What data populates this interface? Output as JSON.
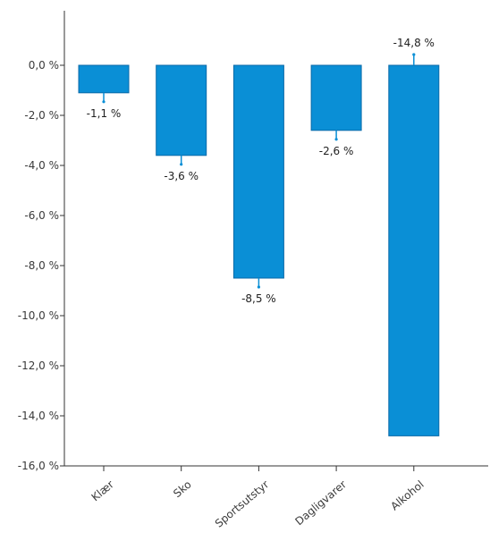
{
  "chart_data": {
    "type": "bar",
    "categories": [
      "Klær",
      "Sko",
      "Sportsutstyr",
      "Dagligvarer",
      "Alkohol"
    ],
    "values": [
      -1.1,
      -3.6,
      -8.5,
      -2.6,
      -14.8
    ],
    "value_labels": [
      "-1,1 %",
      "-3,6 %",
      "-8,5 %",
      "-2,6 %",
      "-14,8 %"
    ],
    "y_ticks": [
      0,
      -2,
      -4,
      -6,
      -8,
      -10,
      -12,
      -14,
      -16
    ],
    "y_tick_labels": [
      "0,0 %",
      "-2,0 %",
      "-4,0 %",
      "-6,0 %",
      "-8,0 %",
      "-10,0 %",
      "-12,0 %",
      "-14,0 %",
      "-16,0 %"
    ],
    "ylim": [
      -16,
      0
    ],
    "grid": false,
    "bar_color": "#0a8fd6",
    "bar_edge_color": "#0b6aa8",
    "axis_color": "#333333",
    "error_bar_color": "#0a8fd6"
  }
}
